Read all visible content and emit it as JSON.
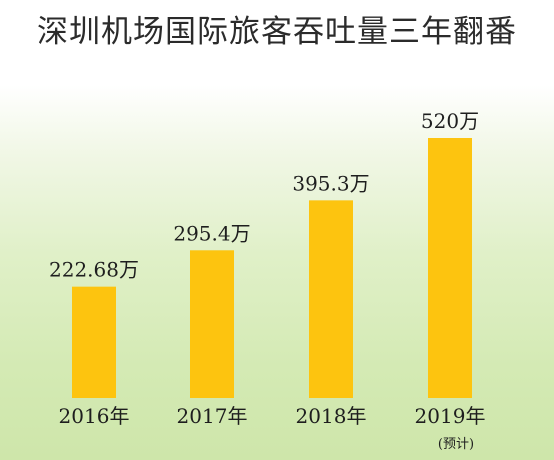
{
  "chart_data": {
    "type": "bar",
    "title": "深圳机场国际旅客吞吐量三年翻番",
    "categories": [
      "2016年",
      "2017年",
      "2018年",
      "2019年"
    ],
    "values": [
      222.68,
      295.4,
      395.3,
      520
    ],
    "value_labels": [
      "222.68万",
      "295.4万",
      "395.3万",
      "520万"
    ],
    "annotations": [
      "",
      "",
      "",
      "(预计)"
    ],
    "ylim": [
      0,
      620
    ],
    "grid": false,
    "bar_color": "#fdc40f"
  }
}
